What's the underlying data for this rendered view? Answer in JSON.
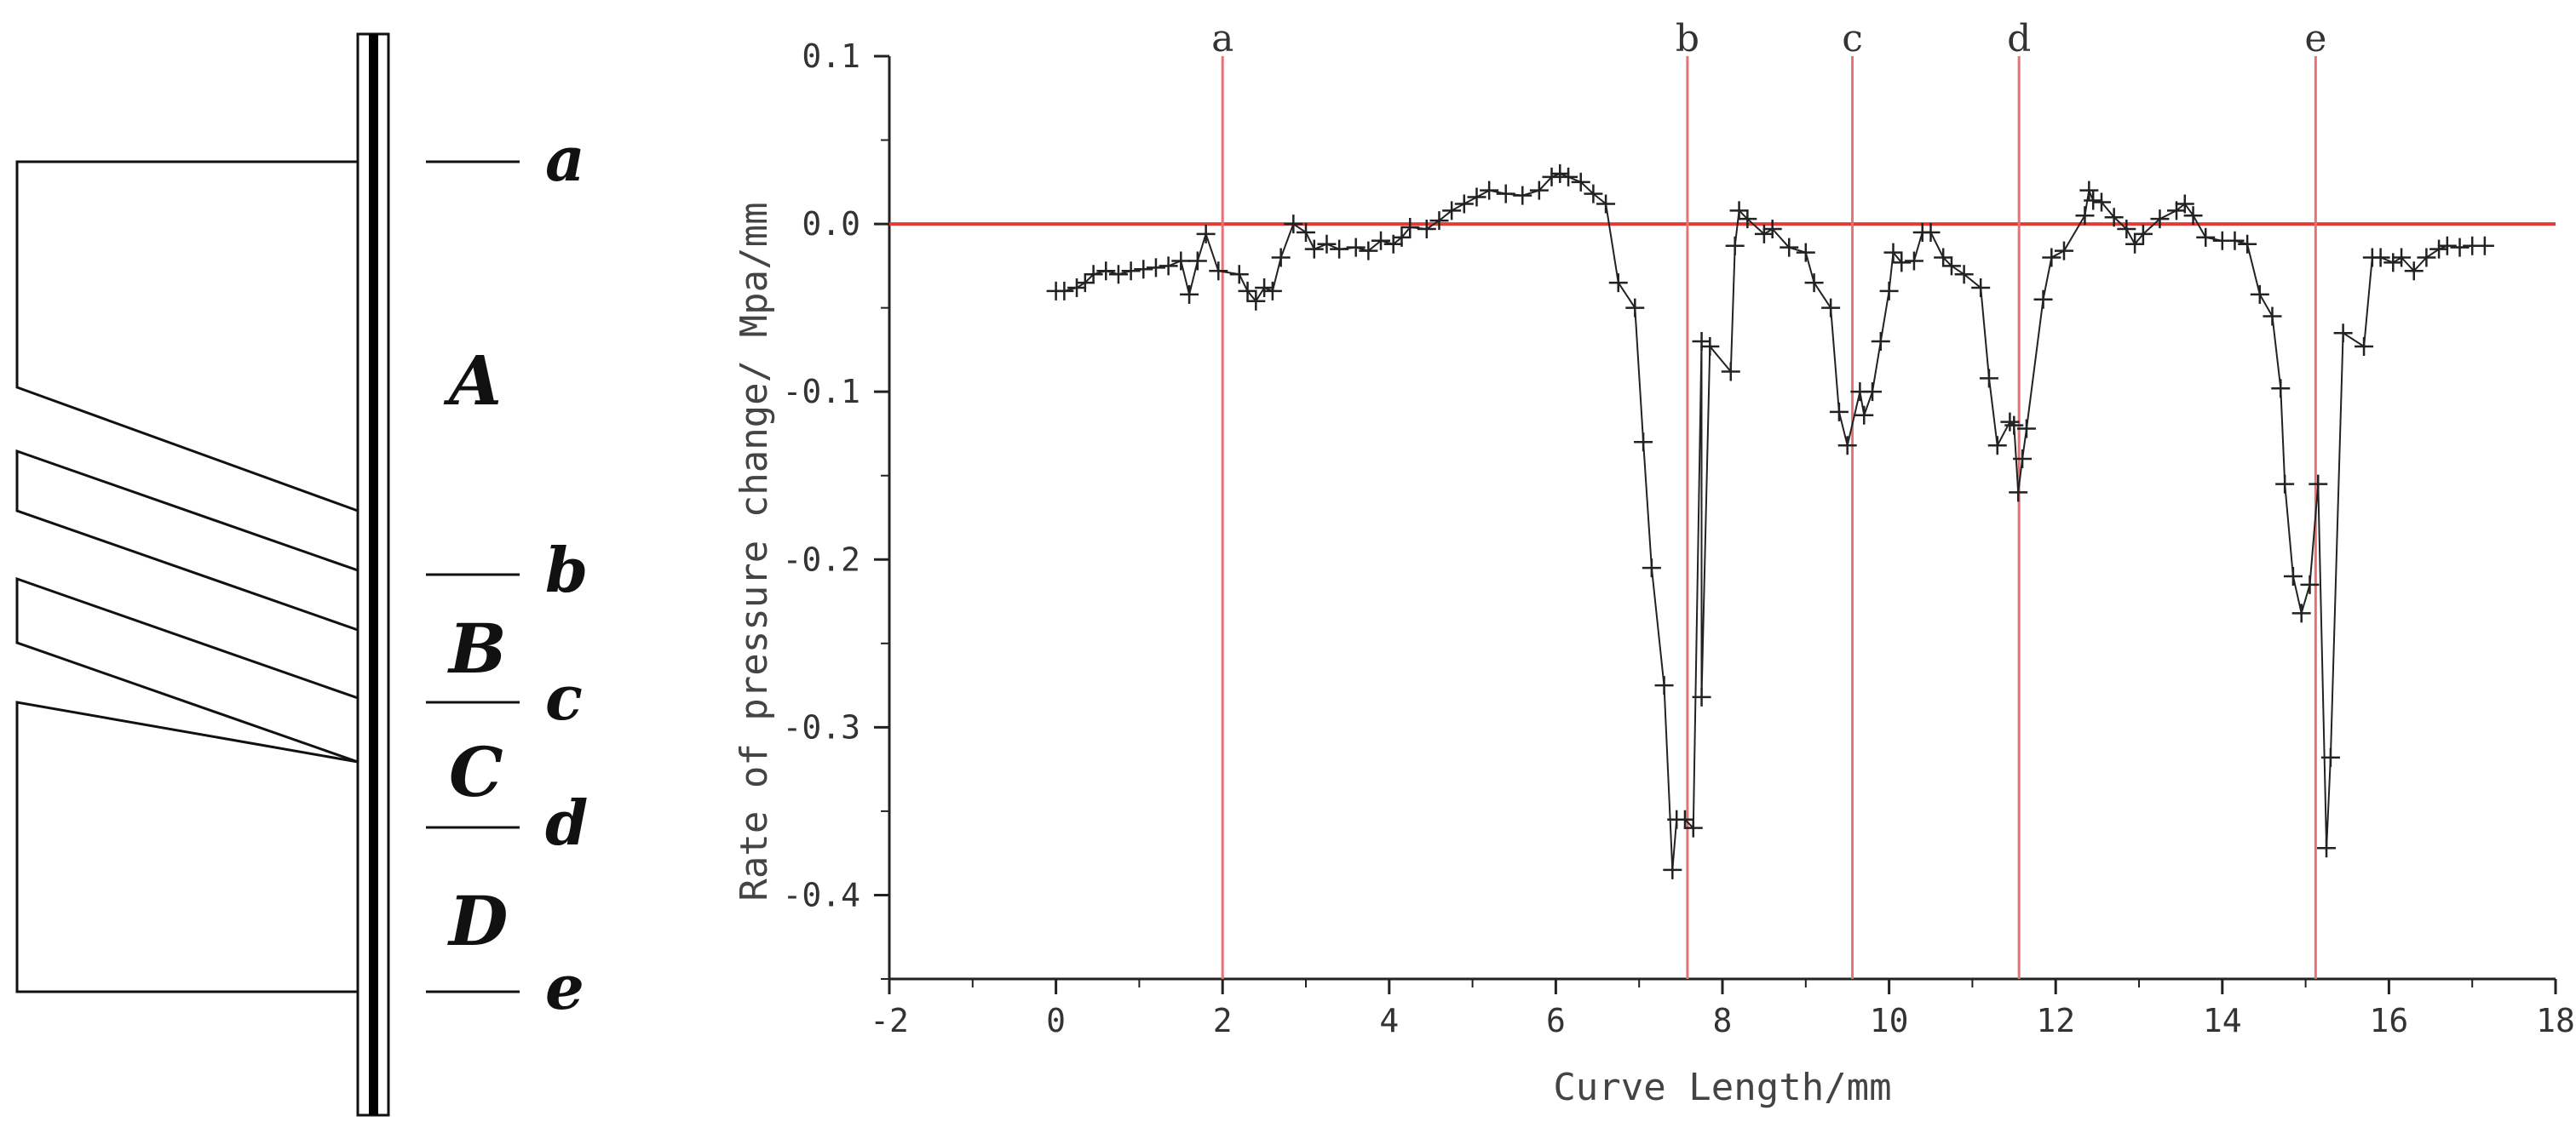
{
  "diagram": {
    "section_labels": [
      "A",
      "B",
      "C",
      "D"
    ],
    "level_labels": [
      "a",
      "b",
      "c",
      "d",
      "e"
    ]
  },
  "chart_data": {
    "type": "scatter",
    "xlabel": "Curve Length/mm",
    "ylabel": "Rate of pressure change/ Mpa/mm",
    "xlim": [
      -2,
      18
    ],
    "ylim": [
      -0.45,
      0.1
    ],
    "xticks": [
      -2,
      0,
      2,
      4,
      6,
      8,
      10,
      12,
      14,
      16,
      18
    ],
    "xtick_labels": [
      "-2",
      "0",
      "2",
      "4",
      "6",
      "8",
      "10",
      "12",
      "14",
      "16",
      "18"
    ],
    "yticks": [
      0.1,
      0.0,
      -0.1,
      -0.2,
      -0.3,
      -0.4
    ],
    "ytick_labels": [
      "0.1",
      "0.0",
      "-0.1",
      "-0.2",
      "-0.3",
      "-0.4"
    ],
    "reference_line_y": 0.0,
    "vertical_markers": [
      {
        "label": "a",
        "x": 2.0
      },
      {
        "label": "b",
        "x": 7.58
      },
      {
        "label": "c",
        "x": 9.56
      },
      {
        "label": "d",
        "x": 11.56
      },
      {
        "label": "e",
        "x": 15.12
      }
    ],
    "series": [
      {
        "name": "pressure change rate",
        "marker": "+",
        "points": [
          [
            0.0,
            -0.04
          ],
          [
            0.1,
            -0.04
          ],
          [
            0.25,
            -0.038
          ],
          [
            0.35,
            -0.035
          ],
          [
            0.45,
            -0.03
          ],
          [
            0.6,
            -0.028
          ],
          [
            0.75,
            -0.03
          ],
          [
            0.9,
            -0.028
          ],
          [
            1.05,
            -0.027
          ],
          [
            1.2,
            -0.026
          ],
          [
            1.35,
            -0.025
          ],
          [
            1.5,
            -0.022
          ],
          [
            1.6,
            -0.042
          ],
          [
            1.7,
            -0.022
          ],
          [
            1.8,
            -0.006
          ],
          [
            1.95,
            -0.028
          ],
          [
            2.2,
            -0.03
          ],
          [
            2.3,
            -0.04
          ],
          [
            2.4,
            -0.046
          ],
          [
            2.5,
            -0.038
          ],
          [
            2.6,
            -0.04
          ],
          [
            2.7,
            -0.02
          ],
          [
            2.85,
            0.0
          ],
          [
            3.0,
            -0.005
          ],
          [
            3.1,
            -0.015
          ],
          [
            3.25,
            -0.012
          ],
          [
            3.4,
            -0.015
          ],
          [
            3.6,
            -0.014
          ],
          [
            3.75,
            -0.016
          ],
          [
            3.9,
            -0.01
          ],
          [
            4.05,
            -0.012
          ],
          [
            4.15,
            -0.008
          ],
          [
            4.25,
            -0.002
          ],
          [
            4.45,
            -0.003
          ],
          [
            4.6,
            0.002
          ],
          [
            4.75,
            0.008
          ],
          [
            4.9,
            0.012
          ],
          [
            5.05,
            0.016
          ],
          [
            5.2,
            0.02
          ],
          [
            5.4,
            0.018
          ],
          [
            5.6,
            0.017
          ],
          [
            5.8,
            0.02
          ],
          [
            5.95,
            0.028
          ],
          [
            6.05,
            0.03
          ],
          [
            6.15,
            0.028
          ],
          [
            6.3,
            0.025
          ],
          [
            6.45,
            0.018
          ],
          [
            6.6,
            0.012
          ],
          [
            6.75,
            -0.035
          ],
          [
            6.95,
            -0.05
          ],
          [
            7.05,
            -0.13
          ],
          [
            7.15,
            -0.205
          ],
          [
            7.3,
            -0.275
          ],
          [
            7.4,
            -0.385
          ],
          [
            7.45,
            -0.355
          ],
          [
            7.55,
            -0.355
          ],
          [
            7.65,
            -0.36
          ],
          [
            7.75,
            -0.07
          ],
          [
            7.75,
            -0.282
          ],
          [
            7.85,
            -0.073
          ],
          [
            8.1,
            -0.088
          ],
          [
            8.15,
            -0.013
          ],
          [
            8.2,
            0.008
          ],
          [
            8.3,
            0.003
          ],
          [
            8.5,
            -0.006
          ],
          [
            8.6,
            -0.003
          ],
          [
            8.8,
            -0.014
          ],
          [
            9.0,
            -0.017
          ],
          [
            9.1,
            -0.035
          ],
          [
            9.3,
            -0.05
          ],
          [
            9.4,
            -0.112
          ],
          [
            9.5,
            -0.132
          ],
          [
            9.65,
            -0.1
          ],
          [
            9.7,
            -0.114
          ],
          [
            9.8,
            -0.1
          ],
          [
            9.9,
            -0.07
          ],
          [
            10.0,
            -0.04
          ],
          [
            10.05,
            -0.017
          ],
          [
            10.15,
            -0.023
          ],
          [
            10.3,
            -0.022
          ],
          [
            10.4,
            -0.005
          ],
          [
            10.5,
            -0.005
          ],
          [
            10.65,
            -0.02
          ],
          [
            10.75,
            -0.025
          ],
          [
            10.9,
            -0.03
          ],
          [
            11.1,
            -0.038
          ],
          [
            11.2,
            -0.092
          ],
          [
            11.3,
            -0.132
          ],
          [
            11.45,
            -0.118
          ],
          [
            11.5,
            -0.12
          ],
          [
            11.55,
            -0.16
          ],
          [
            11.6,
            -0.14
          ],
          [
            11.65,
            -0.122
          ],
          [
            11.85,
            -0.045
          ],
          [
            11.95,
            -0.02
          ],
          [
            12.1,
            -0.016
          ],
          [
            12.35,
            0.005
          ],
          [
            12.4,
            0.02
          ],
          [
            12.45,
            0.014
          ],
          [
            12.55,
            0.013
          ],
          [
            12.7,
            0.004
          ],
          [
            12.85,
            -0.003
          ],
          [
            12.95,
            -0.012
          ],
          [
            13.05,
            -0.006
          ],
          [
            13.25,
            0.003
          ],
          [
            13.45,
            0.008
          ],
          [
            13.55,
            0.012
          ],
          [
            13.65,
            0.005
          ],
          [
            13.8,
            -0.008
          ],
          [
            14.0,
            -0.01
          ],
          [
            14.15,
            -0.01
          ],
          [
            14.3,
            -0.012
          ],
          [
            14.45,
            -0.042
          ],
          [
            14.6,
            -0.055
          ],
          [
            14.7,
            -0.098
          ],
          [
            14.75,
            -0.155
          ],
          [
            14.85,
            -0.21
          ],
          [
            14.95,
            -0.232
          ],
          [
            15.05,
            -0.215
          ],
          [
            15.15,
            -0.155
          ],
          [
            15.25,
            -0.372
          ],
          [
            15.3,
            -0.318
          ],
          [
            15.45,
            -0.065
          ],
          [
            15.7,
            -0.073
          ],
          [
            15.8,
            -0.02
          ],
          [
            15.9,
            -0.02
          ],
          [
            16.05,
            -0.023
          ],
          [
            16.15,
            -0.02
          ],
          [
            16.3,
            -0.028
          ],
          [
            16.45,
            -0.02
          ],
          [
            16.6,
            -0.015
          ],
          [
            16.7,
            -0.013
          ],
          [
            16.85,
            -0.014
          ],
          [
            17.0,
            -0.013
          ],
          [
            17.15,
            -0.013
          ]
        ]
      }
    ]
  },
  "colors": {
    "reference": "#e53935",
    "marker_line": "#e57373",
    "data": "#222222",
    "axis": "#222222"
  }
}
